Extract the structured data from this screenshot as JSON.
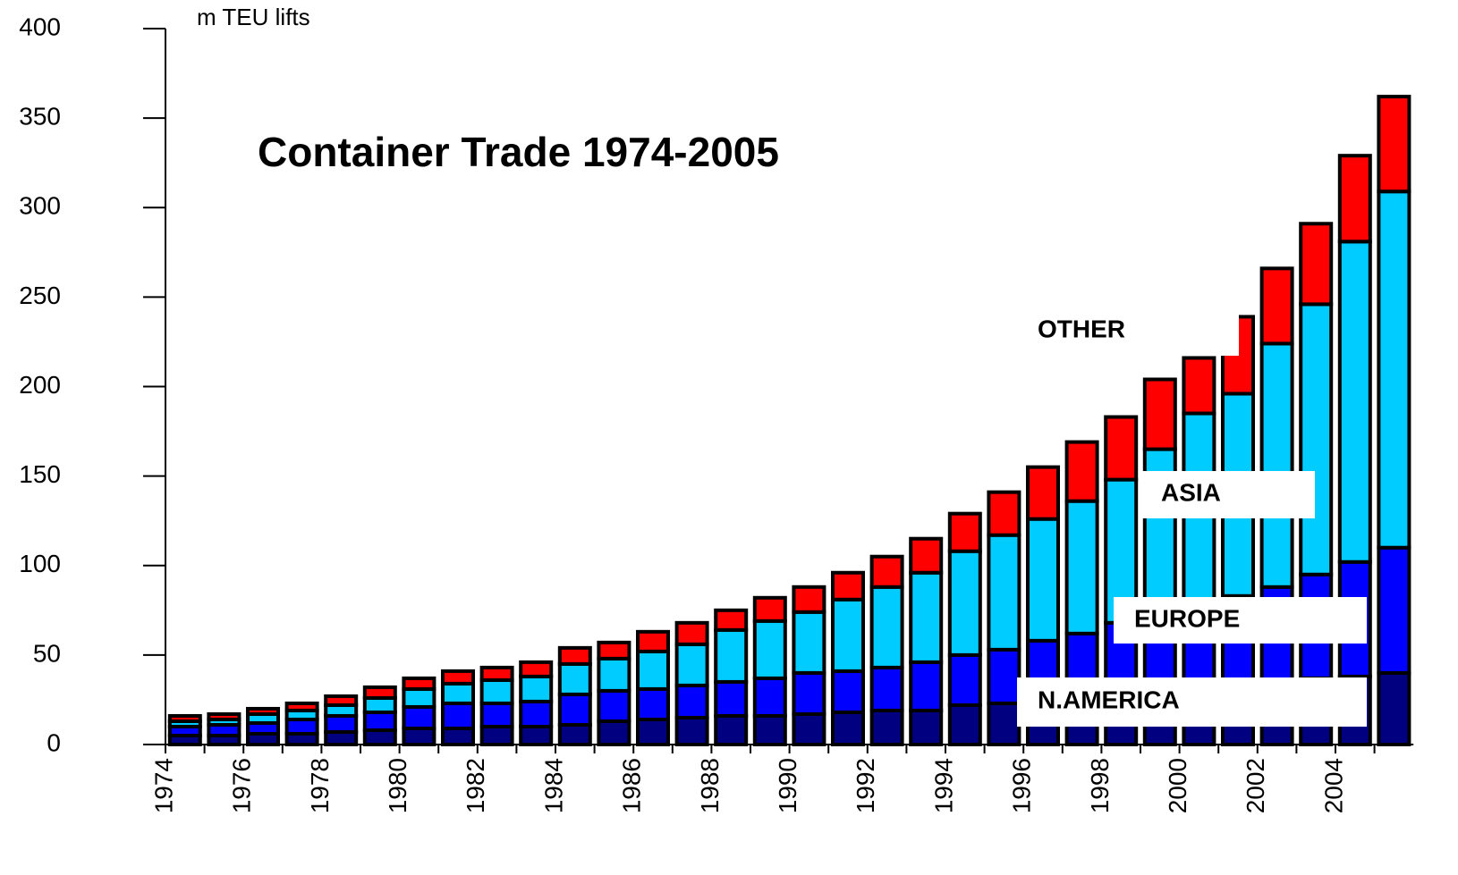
{
  "chart_data": {
    "type": "stacked_bar",
    "title": "Container Trade 1974-2005",
    "y_label": "m TEU lifts",
    "categories": [
      "1974",
      null,
      "1976",
      null,
      "1978",
      null,
      "1980",
      null,
      "1982",
      null,
      "1984",
      null,
      "1986",
      null,
      "1988",
      null,
      "1990",
      null,
      "1992",
      null,
      "1994",
      null,
      "1996",
      null,
      "1998",
      null,
      "2000",
      null,
      "2002",
      null,
      "2004",
      null
    ],
    "series": [
      {
        "name": "N.AMERICA",
        "color": "#000080",
        "values": [
          5,
          5,
          6,
          6,
          7,
          8,
          9,
          9,
          10,
          10,
          11,
          13,
          14,
          15,
          16,
          16,
          17,
          18,
          19,
          19,
          22,
          23,
          25,
          26,
          28,
          30,
          31,
          33,
          35,
          37,
          38,
          40
        ]
      },
      {
        "name": "EUROPE",
        "color": "#0000ff",
        "values": [
          5,
          6,
          6,
          8,
          9,
          10,
          12,
          14,
          13,
          14,
          17,
          17,
          17,
          18,
          19,
          21,
          23,
          23,
          24,
          27,
          28,
          30,
          33,
          36,
          40,
          45,
          48,
          50,
          53,
          58,
          64,
          70
        ]
      },
      {
        "name": "ASIA",
        "color": "#00ccff",
        "values": [
          3,
          3,
          5,
          5,
          6,
          8,
          10,
          11,
          13,
          14,
          17,
          18,
          21,
          23,
          29,
          32,
          34,
          40,
          45,
          50,
          58,
          64,
          68,
          74,
          80,
          90,
          106,
          113,
          136,
          151,
          179,
          199
        ]
      },
      {
        "name": "OTHER",
        "color": "#ff0000",
        "values": [
          3,
          3,
          3,
          4,
          5,
          6,
          6,
          7,
          7,
          8,
          9,
          9,
          11,
          12,
          11,
          13,
          14,
          15,
          17,
          19,
          21,
          24,
          29,
          33,
          35,
          39,
          31,
          43,
          42,
          45,
          48,
          53
        ]
      }
    ],
    "ylim": [
      0,
      400
    ],
    "yticks": [
      0,
      50,
      100,
      150,
      200,
      250,
      300,
      350,
      400
    ]
  }
}
